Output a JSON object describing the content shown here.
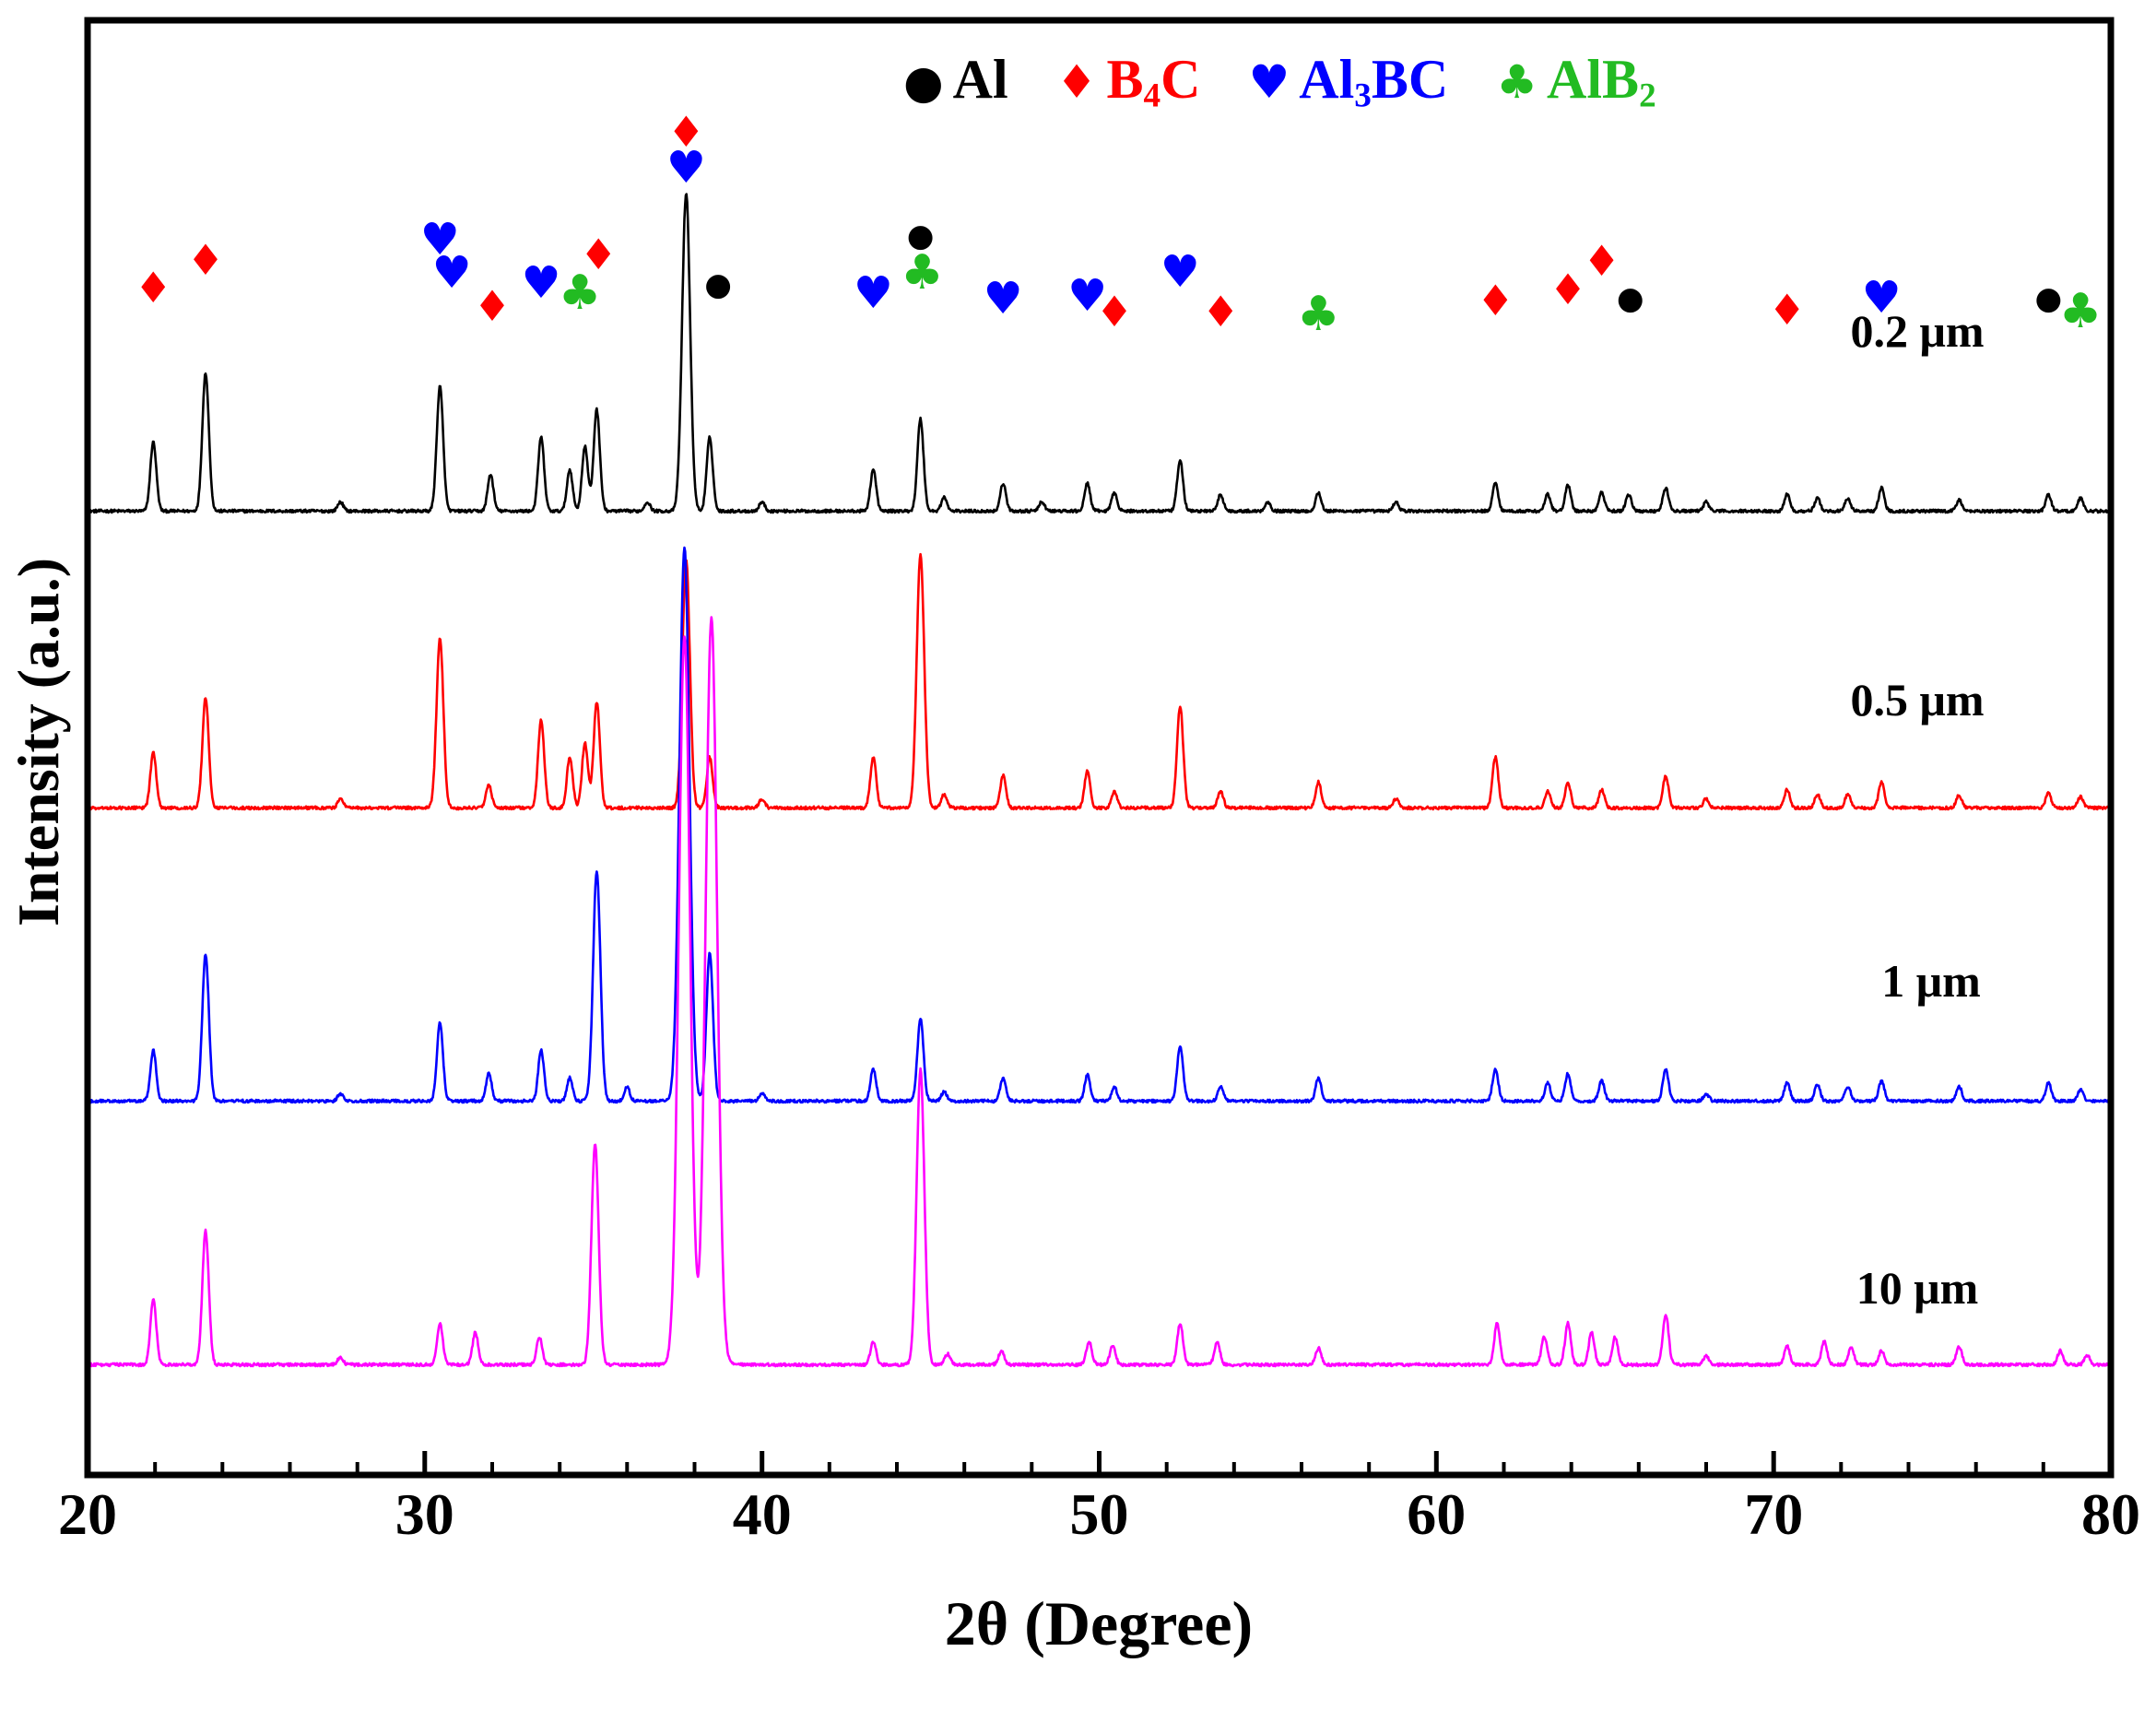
{
  "axes": {
    "xlabel": "2θ (Degree)",
    "ylabel": "Intensity (a.u.)"
  },
  "legend": {
    "items": [
      {
        "name": "Al",
        "symbol": "circle",
        "glyph": "●",
        "color": "#000000",
        "pre": "Al",
        "sub": "",
        "post": ""
      },
      {
        "name": "B4C",
        "symbol": "diamond",
        "glyph": "♦",
        "color": "#ff0000",
        "pre": "B",
        "sub": "4",
        "post": "C"
      },
      {
        "name": "Al3BC",
        "symbol": "heart",
        "glyph": "♥",
        "color": "#0000ff",
        "pre": "Al",
        "sub": "3",
        "post": "BC"
      },
      {
        "name": "AlB2",
        "symbol": "club",
        "glyph": "♣",
        "color": "#22bb22",
        "pre": "AlB",
        "sub": "2",
        "post": ""
      }
    ]
  },
  "chart_data": {
    "type": "line",
    "title": "",
    "xlabel": "2θ (Degree)",
    "ylabel": "Intensity (a.u.)",
    "xlim": [
      20,
      80
    ],
    "x_major_ticks": [
      20,
      30,
      40,
      50,
      60,
      70,
      80
    ],
    "x_minor_step": 2,
    "y_axis": "arbitrary units, stacked offsets, no ticks",
    "peak_format": [
      "two_theta_deg",
      "relative_height_px"
    ],
    "series": [
      {
        "name": "0.2 μm",
        "color": "#000000",
        "baseline": 556,
        "peaks": [
          [
            21.95,
            75
          ],
          [
            23.5,
            150
          ],
          [
            27.5,
            10
          ],
          [
            30.45,
            135
          ],
          [
            31.95,
            40
          ],
          [
            33.45,
            80
          ],
          [
            34.3,
            45
          ],
          [
            34.75,
            70
          ],
          [
            35.1,
            110
          ],
          [
            36.6,
            10
          ],
          [
            37.75,
            345
          ],
          [
            38.45,
            80
          ],
          [
            40.0,
            10
          ],
          [
            43.3,
            45
          ],
          [
            44.7,
            100
          ],
          [
            45.4,
            15
          ],
          [
            47.15,
            30
          ],
          [
            48.3,
            10
          ],
          [
            49.65,
            30
          ],
          [
            50.45,
            20
          ],
          [
            52.4,
            55
          ],
          [
            53.6,
            18
          ],
          [
            55.0,
            10
          ],
          [
            56.5,
            20
          ],
          [
            58.8,
            10
          ],
          [
            61.75,
            30
          ],
          [
            63.3,
            18
          ],
          [
            63.9,
            28
          ],
          [
            64.9,
            20
          ],
          [
            65.7,
            18
          ],
          [
            66.8,
            25
          ],
          [
            68.0,
            10
          ],
          [
            70.4,
            18
          ],
          [
            71.3,
            14
          ],
          [
            72.2,
            14
          ],
          [
            73.2,
            25
          ],
          [
            75.5,
            12
          ],
          [
            78.15,
            18
          ],
          [
            79.1,
            14
          ]
        ]
      },
      {
        "name": "0.5 μm",
        "color": "#ff0000",
        "baseline": 878,
        "peaks": [
          [
            21.95,
            60
          ],
          [
            23.5,
            120
          ],
          [
            27.5,
            10
          ],
          [
            30.45,
            185
          ],
          [
            31.9,
            25
          ],
          [
            33.45,
            95
          ],
          [
            34.3,
            55
          ],
          [
            34.75,
            70
          ],
          [
            35.1,
            115
          ],
          [
            37.75,
            270
          ],
          [
            38.45,
            55
          ],
          [
            40.0,
            10
          ],
          [
            43.3,
            55
          ],
          [
            44.7,
            275
          ],
          [
            45.4,
            15
          ],
          [
            47.15,
            35
          ],
          [
            49.65,
            40
          ],
          [
            50.45,
            18
          ],
          [
            52.4,
            110
          ],
          [
            53.6,
            18
          ],
          [
            56.5,
            28
          ],
          [
            58.8,
            10
          ],
          [
            61.75,
            55
          ],
          [
            63.3,
            18
          ],
          [
            63.9,
            28
          ],
          [
            64.9,
            20
          ],
          [
            66.8,
            35
          ],
          [
            68.0,
            10
          ],
          [
            70.4,
            20
          ],
          [
            71.3,
            15
          ],
          [
            72.2,
            15
          ],
          [
            73.2,
            28
          ],
          [
            75.5,
            14
          ],
          [
            78.15,
            16
          ],
          [
            79.1,
            12
          ]
        ]
      },
      {
        "name": "1 μm",
        "color": "#0000ff",
        "baseline": 1196,
        "peaks": [
          [
            21.95,
            55
          ],
          [
            23.5,
            160
          ],
          [
            27.5,
            8
          ],
          [
            30.45,
            85
          ],
          [
            31.9,
            30
          ],
          [
            33.45,
            55
          ],
          [
            34.3,
            25
          ],
          [
            35.1,
            250
          ],
          [
            36.0,
            15
          ],
          [
            37.7,
            600
          ],
          [
            38.45,
            160
          ],
          [
            40.0,
            8
          ],
          [
            43.3,
            35
          ],
          [
            44.7,
            90
          ],
          [
            45.4,
            10
          ],
          [
            47.15,
            25
          ],
          [
            49.65,
            28
          ],
          [
            50.45,
            15
          ],
          [
            52.4,
            60
          ],
          [
            53.6,
            15
          ],
          [
            56.5,
            25
          ],
          [
            61.75,
            35
          ],
          [
            63.3,
            20
          ],
          [
            63.9,
            30
          ],
          [
            64.9,
            22
          ],
          [
            66.8,
            35
          ],
          [
            68.0,
            8
          ],
          [
            70.4,
            20
          ],
          [
            71.3,
            18
          ],
          [
            72.2,
            16
          ],
          [
            73.2,
            22
          ],
          [
            75.5,
            16
          ],
          [
            78.15,
            20
          ],
          [
            79.1,
            12
          ]
        ]
      },
      {
        "name": "10 μm",
        "color": "#ff00ff",
        "baseline": 1482,
        "peaks": [
          [
            21.95,
            70
          ],
          [
            23.5,
            145
          ],
          [
            27.5,
            8
          ],
          [
            30.45,
            45
          ],
          [
            31.5,
            35
          ],
          [
            33.4,
            30
          ],
          [
            35.05,
            240
          ],
          [
            37.7,
            790
          ],
          [
            38.5,
            810
          ],
          [
            43.3,
            25
          ],
          [
            44.7,
            320
          ],
          [
            45.5,
            12
          ],
          [
            47.1,
            15
          ],
          [
            49.7,
            25
          ],
          [
            50.4,
            20
          ],
          [
            52.4,
            45
          ],
          [
            53.5,
            25
          ],
          [
            56.5,
            18
          ],
          [
            61.8,
            45
          ],
          [
            63.2,
            30
          ],
          [
            63.9,
            45
          ],
          [
            64.6,
            35
          ],
          [
            65.3,
            30
          ],
          [
            66.8,
            55
          ],
          [
            68.0,
            10
          ],
          [
            70.4,
            20
          ],
          [
            71.5,
            25
          ],
          [
            72.3,
            20
          ],
          [
            73.2,
            15
          ],
          [
            75.5,
            20
          ],
          [
            78.5,
            15
          ],
          [
            79.3,
            10
          ]
        ]
      }
    ],
    "phase_markers": [
      {
        "x": 21.95,
        "phase": "B4C",
        "symbol": "diamond",
        "color": "#ff0000",
        "y": 312
      },
      {
        "x": 23.5,
        "phase": "B4C",
        "symbol": "diamond",
        "color": "#ff0000",
        "y": 282
      },
      {
        "x": 30.45,
        "phase": "Al3BC",
        "symbol": "heart",
        "color": "#0000ff",
        "y": 260
      },
      {
        "x": 30.8,
        "phase": "Al3BC",
        "symbol": "heart",
        "color": "#0000ff",
        "y": 296
      },
      {
        "x": 32.0,
        "phase": "B4C",
        "symbol": "diamond",
        "color": "#ff0000",
        "y": 332
      },
      {
        "x": 33.45,
        "phase": "Al3BC",
        "symbol": "heart",
        "color": "#0000ff",
        "y": 307
      },
      {
        "x": 34.6,
        "phase": "AlB2",
        "symbol": "club",
        "color": "#22bb22",
        "y": 318
      },
      {
        "x": 35.15,
        "phase": "B4C",
        "symbol": "diamond",
        "color": "#ff0000",
        "y": 276
      },
      {
        "x": 37.75,
        "phase": "B4C",
        "symbol": "diamond",
        "color": "#ff0000",
        "y": 143
      },
      {
        "x": 37.75,
        "phase": "Al3BC",
        "symbol": "heart",
        "color": "#0000ff",
        "y": 182
      },
      {
        "x": 38.7,
        "phase": "Al",
        "symbol": "circle",
        "color": "#000000",
        "y": 309
      },
      {
        "x": 43.3,
        "phase": "Al3BC",
        "symbol": "heart",
        "color": "#0000ff",
        "y": 318
      },
      {
        "x": 44.7,
        "phase": "Al",
        "symbol": "circle",
        "color": "#000000",
        "y": 256
      },
      {
        "x": 44.75,
        "phase": "AlB2",
        "symbol": "club",
        "color": "#22bb22",
        "y": 296
      },
      {
        "x": 47.15,
        "phase": "Al3BC",
        "symbol": "heart",
        "color": "#0000ff",
        "y": 324
      },
      {
        "x": 49.65,
        "phase": "Al3BC",
        "symbol": "heart",
        "color": "#0000ff",
        "y": 321
      },
      {
        "x": 50.45,
        "phase": "B4C",
        "symbol": "diamond",
        "color": "#ff0000",
        "y": 338
      },
      {
        "x": 52.4,
        "phase": "Al3BC",
        "symbol": "heart",
        "color": "#0000ff",
        "y": 295
      },
      {
        "x": 53.6,
        "phase": "B4C",
        "symbol": "diamond",
        "color": "#ff0000",
        "y": 338
      },
      {
        "x": 56.5,
        "phase": "AlB2",
        "symbol": "club",
        "color": "#22bb22",
        "y": 341
      },
      {
        "x": 61.75,
        "phase": "B4C",
        "symbol": "diamond",
        "color": "#ff0000",
        "y": 326
      },
      {
        "x": 63.9,
        "phase": "B4C",
        "symbol": "diamond",
        "color": "#ff0000",
        "y": 314
      },
      {
        "x": 64.9,
        "phase": "B4C",
        "symbol": "diamond",
        "color": "#ff0000",
        "y": 283
      },
      {
        "x": 65.75,
        "phase": "Al",
        "symbol": "circle",
        "color": "#000000",
        "y": 324
      },
      {
        "x": 70.4,
        "phase": "B4C",
        "symbol": "diamond",
        "color": "#ff0000",
        "y": 336
      },
      {
        "x": 73.2,
        "phase": "Al3BC",
        "symbol": "heart",
        "color": "#0000ff",
        "y": 323
      },
      {
        "x": 78.15,
        "phase": "Al",
        "symbol": "circle",
        "color": "#000000",
        "y": 324
      },
      {
        "x": 79.1,
        "phase": "AlB2",
        "symbol": "club",
        "color": "#22bb22",
        "y": 338
      }
    ]
  }
}
